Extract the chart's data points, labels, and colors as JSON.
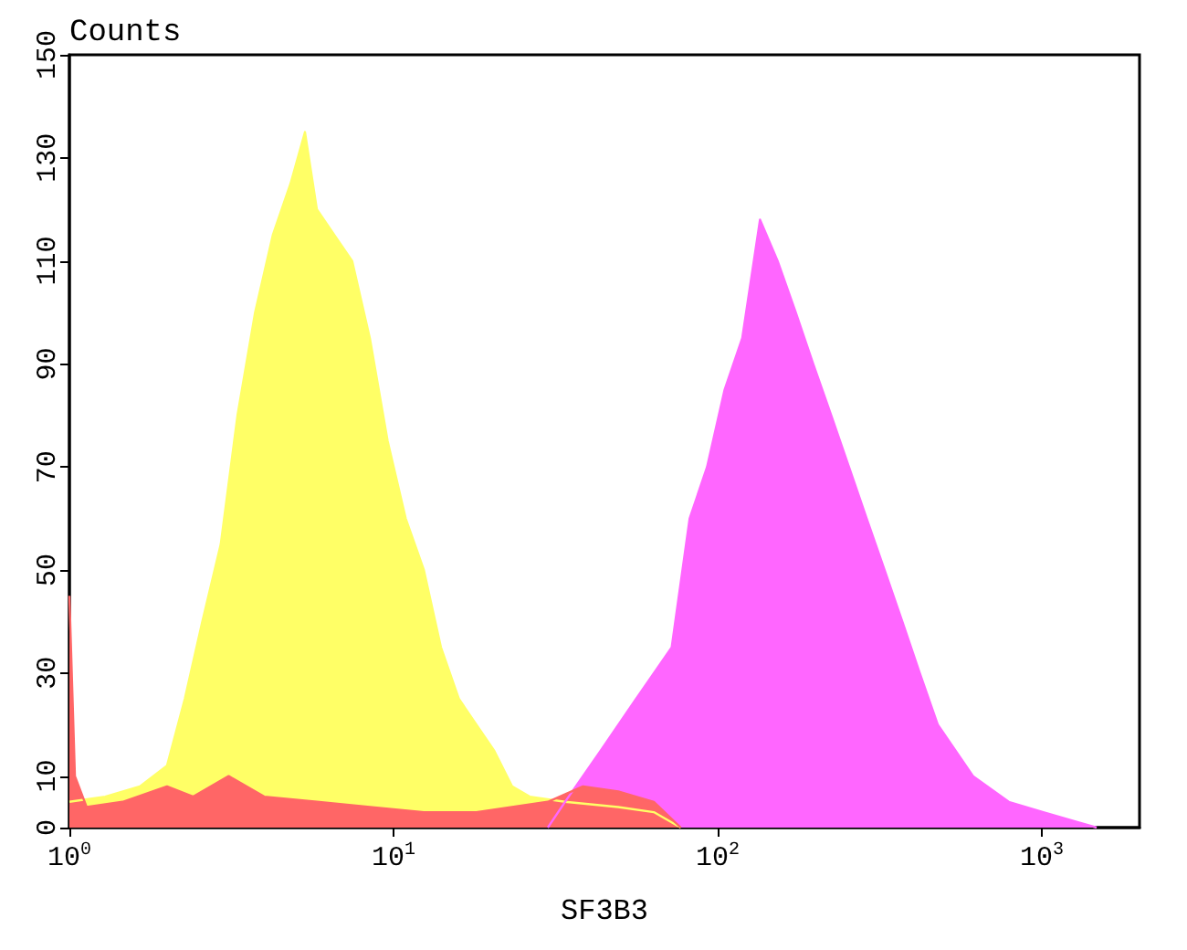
{
  "chart_data": {
    "type": "area",
    "ylabel": "Counts",
    "xlabel": "SF3B3",
    "log": "x",
    "grid": false,
    "marker": "none",
    "line_style": "solid",
    "xlim": [
      1,
      2000
    ],
    "xticks": [
      {
        "value": 1,
        "label": "10$^{0}$"
      },
      {
        "value": 10,
        "label": "10$^{1}$"
      },
      {
        "value": 100,
        "label": "10$^{2}$"
      },
      {
        "value": 1000,
        "label": "10$^{3}$"
      }
    ],
    "ylim": [
      0,
      150
    ],
    "yticks": [
      0,
      10,
      30,
      50,
      70,
      90,
      110,
      130,
      150
    ],
    "series": [
      {
        "color": "#ffff66",
        "x": [
          1,
          1.29,
          1.65,
          2.0,
          2.27,
          2.57,
          2.93,
          3.3,
          3.74,
          4.24,
          4.81,
          5.33,
          5.8,
          6.57,
          7.45,
          8.45,
          9.59,
          10.9,
          12.4,
          14.0,
          15.9,
          18.0,
          20.4,
          23.2,
          26.3,
          33.8,
          49.3,
          63.5,
          76.9
        ],
        "values": [
          5,
          6,
          8,
          12,
          25,
          40,
          55,
          80,
          100,
          115,
          125,
          135,
          120,
          115,
          110,
          95,
          75,
          60,
          50,
          35,
          25,
          20,
          15,
          8,
          6,
          5,
          4,
          3,
          0
        ]
      },
      {
        "color": "#ff66ff",
        "x": [
          29.9,
          33.8,
          43.6,
          56.0,
          72.1,
          81.9,
          92.7,
          105,
          119,
          135,
          153,
          174,
          197,
          224,
          254,
          288,
          327,
          371,
          420,
          477,
          613,
          790,
          1010,
          1300,
          1475
        ],
        "values": [
          0,
          5,
          15,
          25,
          35,
          60,
          70,
          85,
          95,
          118,
          110,
          100,
          90,
          80,
          70,
          60,
          50,
          40,
          30,
          20,
          10,
          5,
          3,
          1,
          0
        ]
      },
      {
        "color": "#ff6666",
        "x": [
          1,
          1.04,
          1.13,
          1.46,
          2.0,
          2.41,
          3.1,
          3.99,
          5.8,
          8.45,
          12.4,
          18.0,
          29.9,
          38.4,
          49.3,
          63.5,
          76.9
        ],
        "values": [
          45,
          10,
          4,
          5,
          8,
          6,
          10,
          6,
          5,
          4,
          3,
          3,
          5,
          8,
          7,
          5,
          0
        ]
      }
    ]
  }
}
